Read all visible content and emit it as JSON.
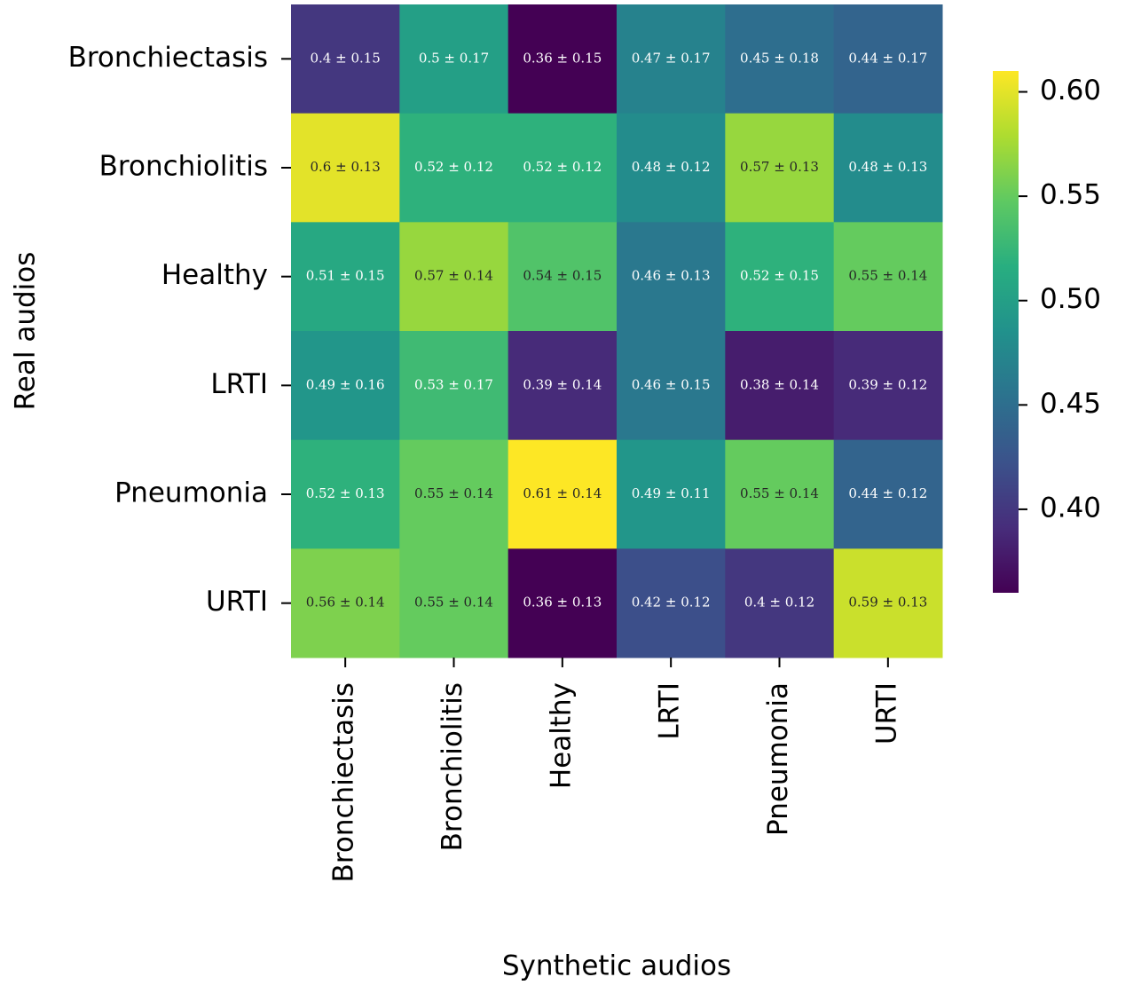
{
  "chart_data": {
    "type": "heatmap",
    "x_label": "Synthetic audios",
    "y_label": "Real audios",
    "x_categories": [
      "Bronchiectasis",
      "Bronchiolitis",
      "Healthy",
      "LRTI",
      "Pneumonia",
      "URTI"
    ],
    "y_categories": [
      "Bronchiectasis",
      "Bronchiolitis",
      "Healthy",
      "LRTI",
      "Pneumonia",
      "URTI"
    ],
    "values": [
      [
        0.4,
        0.5,
        0.36,
        0.47,
        0.45,
        0.44
      ],
      [
        0.6,
        0.52,
        0.52,
        0.48,
        0.57,
        0.48
      ],
      [
        0.51,
        0.57,
        0.54,
        0.46,
        0.52,
        0.55
      ],
      [
        0.49,
        0.53,
        0.39,
        0.46,
        0.38,
        0.39
      ],
      [
        0.52,
        0.55,
        0.61,
        0.49,
        0.55,
        0.44
      ],
      [
        0.56,
        0.55,
        0.36,
        0.42,
        0.4,
        0.59
      ]
    ],
    "errors": [
      [
        0.15,
        0.17,
        0.15,
        0.17,
        0.18,
        0.17
      ],
      [
        0.13,
        0.12,
        0.12,
        0.12,
        0.13,
        0.13
      ],
      [
        0.15,
        0.14,
        0.15,
        0.13,
        0.15,
        0.14
      ],
      [
        0.16,
        0.17,
        0.14,
        0.15,
        0.14,
        0.12
      ],
      [
        0.13,
        0.14,
        0.14,
        0.11,
        0.14,
        0.12
      ],
      [
        0.14,
        0.14,
        0.13,
        0.12,
        0.12,
        0.13
      ]
    ],
    "value_labels": [
      [
        "0.4 ± 0.15",
        "0.5 ± 0.17",
        "0.36 ± 0.15",
        "0.47 ± 0.17",
        "0.45 ± 0.18",
        "0.44 ± 0.17"
      ],
      [
        "0.6 ± 0.13",
        "0.52 ± 0.12",
        "0.52 ± 0.12",
        "0.48 ± 0.12",
        "0.57 ± 0.13",
        "0.48 ± 0.13"
      ],
      [
        "0.51 ± 0.15",
        "0.57 ± 0.14",
        "0.54 ± 0.15",
        "0.46 ± 0.13",
        "0.52 ± 0.15",
        "0.55 ± 0.14"
      ],
      [
        "0.49 ± 0.16",
        "0.53 ± 0.17",
        "0.39 ± 0.14",
        "0.46 ± 0.15",
        "0.38 ± 0.14",
        "0.39 ± 0.12"
      ],
      [
        "0.52 ± 0.13",
        "0.55 ± 0.14",
        "0.61 ± 0.14",
        "0.49 ± 0.11",
        "0.55 ± 0.14",
        "0.44 ± 0.12"
      ],
      [
        "0.56 ± 0.14",
        "0.55 ± 0.14",
        "0.36 ± 0.13",
        "0.42 ± 0.12",
        "0.4 ± 0.12",
        "0.59 ± 0.13"
      ]
    ],
    "colormap": "viridis",
    "clim": [
      0.36,
      0.61
    ],
    "cticks": [
      {
        "value": 0.6,
        "label": "0.60"
      },
      {
        "value": 0.55,
        "label": "0.55"
      },
      {
        "value": 0.5,
        "label": "0.50"
      },
      {
        "value": 0.45,
        "label": "0.45"
      },
      {
        "value": 0.4,
        "label": "0.40"
      }
    ]
  }
}
